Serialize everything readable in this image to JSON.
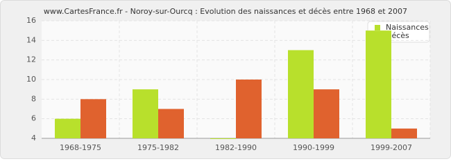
{
  "chart_data": {
    "type": "bar",
    "title": "www.CartesFrance.fr - Noroy-sur-Ourcq : Evolution des naissances et décès entre 1968 et 2007",
    "categories": [
      "1968-1975",
      "1975-1982",
      "1982-1990",
      "1990-1999",
      "1999-2007"
    ],
    "series": [
      {
        "name": "Naissances",
        "color": "#b8e02c",
        "values": [
          6,
          9,
          4,
          13,
          15
        ]
      },
      {
        "name": "Décès",
        "color": "#e0622e",
        "values": [
          8,
          7,
          10,
          9,
          5
        ]
      }
    ],
    "ylim": [
      4,
      16
    ],
    "yticks": [
      4,
      6,
      8,
      10,
      12,
      14,
      16
    ],
    "grid": true,
    "legend": "top-right"
  }
}
